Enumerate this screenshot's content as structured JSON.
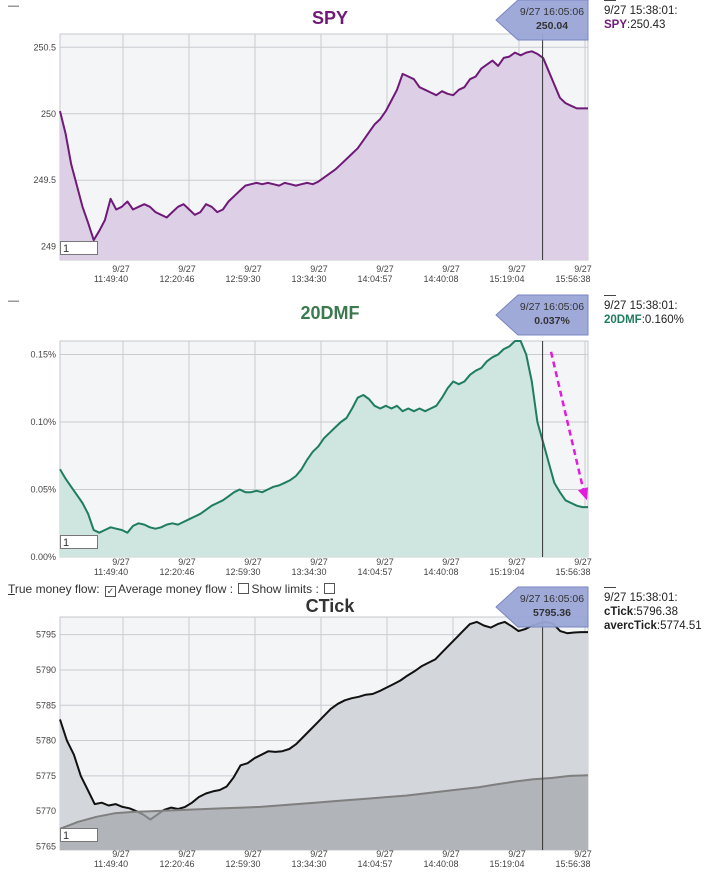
{
  "controls": {
    "true_mf_prefix": "T",
    "true_mf_rest": "rue money flow:",
    "avg_mf_label": "Average money flow :",
    "show_limits_label": "Show limits :"
  },
  "chart_data": [
    {
      "id": "spy",
      "type": "area",
      "title": "SPY",
      "dash": "—",
      "zoom": "1",
      "x_tick_date": "9/27",
      "x_ticks": [
        "11:49:40",
        "12:20:46",
        "12:59:30",
        "13:34:30",
        "14:04:57",
        "14:40:08",
        "15:19:04",
        "15:56:38"
      ],
      "y_ticks": [
        "249",
        "249.5",
        "250",
        "250.5"
      ],
      "y_tick_values": [
        249,
        249.5,
        250,
        250.5
      ],
      "ylim": [
        248.9,
        250.6
      ],
      "colors": {
        "line": "#701a78",
        "fill": "#ddd0e6"
      },
      "cursor": {
        "label": "9/27 16:05:06",
        "value": "250.04",
        "x_frac": 0.914
      },
      "info": {
        "time": "9/27 15:38:01:",
        "key": "SPY",
        "value": ":250.43"
      },
      "series": [
        {
          "values": [
            250.02,
            249.85,
            249.62,
            249.46,
            249.3,
            249.18,
            249.05,
            249.12,
            249.2,
            249.36,
            249.28,
            249.3,
            249.34,
            249.28,
            249.3,
            249.32,
            249.3,
            249.26,
            249.24,
            249.22,
            249.26,
            249.3,
            249.32,
            249.28,
            249.24,
            249.26,
            249.32,
            249.3,
            249.26,
            249.28,
            249.34,
            249.38,
            249.42,
            249.46,
            249.47,
            249.48,
            249.47,
            249.48,
            249.47,
            249.46,
            249.48,
            249.47,
            249.46,
            249.47,
            249.48,
            249.47,
            249.49,
            249.52,
            249.55,
            249.58,
            249.62,
            249.66,
            249.7,
            249.74,
            249.8,
            249.86,
            249.92,
            249.96,
            250.02,
            250.1,
            250.18,
            250.3,
            250.28,
            250.26,
            250.2,
            250.18,
            250.16,
            250.14,
            250.17,
            250.15,
            250.14,
            250.18,
            250.2,
            250.26,
            250.28,
            250.34,
            250.37,
            250.4,
            250.36,
            250.42,
            250.43,
            250.46,
            250.44,
            250.46,
            250.47,
            250.45,
            250.42,
            250.32,
            250.22,
            250.12,
            250.08,
            250.06,
            250.04,
            250.04,
            250.04
          ]
        }
      ]
    },
    {
      "id": "dmf",
      "type": "area",
      "title": "20DMF",
      "dash": "—",
      "zoom": "1",
      "x_tick_date": "9/27",
      "x_ticks": [
        "11:49:40",
        "12:20:46",
        "12:59:30",
        "13:34:30",
        "14:04:57",
        "14:40:08",
        "15:19:04",
        "15:56:38"
      ],
      "y_ticks": [
        "0.00%",
        "0.05%",
        "0.10%",
        "0.15%"
      ],
      "y_tick_values": [
        0,
        0.05,
        0.1,
        0.15
      ],
      "ylim": [
        0,
        0.16
      ],
      "colors": {
        "line": "#1f7d5e",
        "fill": "#cfe5df",
        "arrow": "#e21cdc"
      },
      "cursor": {
        "label": "9/27 16:05:06",
        "value": "0.037%",
        "x_frac": 0.914
      },
      "info": {
        "time": "9/27 15:38:01:",
        "key": "20DMF",
        "value": ":0.160%"
      },
      "series": [
        {
          "values": [
            0.065,
            0.058,
            0.052,
            0.046,
            0.04,
            0.032,
            0.02,
            0.018,
            0.02,
            0.022,
            0.021,
            0.02,
            0.018,
            0.023,
            0.025,
            0.024,
            0.022,
            0.021,
            0.022,
            0.024,
            0.025,
            0.024,
            0.026,
            0.028,
            0.03,
            0.032,
            0.035,
            0.038,
            0.04,
            0.042,
            0.045,
            0.048,
            0.05,
            0.048,
            0.048,
            0.049,
            0.048,
            0.05,
            0.052,
            0.053,
            0.055,
            0.057,
            0.06,
            0.065,
            0.072,
            0.078,
            0.082,
            0.088,
            0.092,
            0.096,
            0.1,
            0.103,
            0.11,
            0.118,
            0.12,
            0.117,
            0.112,
            0.11,
            0.112,
            0.11,
            0.112,
            0.108,
            0.11,
            0.108,
            0.11,
            0.108,
            0.11,
            0.112,
            0.118,
            0.125,
            0.13,
            0.128,
            0.13,
            0.135,
            0.138,
            0.14,
            0.145,
            0.148,
            0.15,
            0.154,
            0.156,
            0.16,
            0.16,
            0.15,
            0.13,
            0.1,
            0.085,
            0.07,
            0.055,
            0.048,
            0.042,
            0.04,
            0.038,
            0.037,
            0.037
          ]
        }
      ]
    },
    {
      "id": "ctick",
      "type": "area",
      "title": "CTick",
      "dash": "—",
      "zoom": "1",
      "x_tick_date": "9/27",
      "x_ticks": [
        "11:49:40",
        "12:20:46",
        "12:59:30",
        "13:34:30",
        "14:04:57",
        "14:40:08",
        "15:19:04",
        "15:56:38"
      ],
      "y_ticks": [
        "5765",
        "5770",
        "5775",
        "5780",
        "5785",
        "5790",
        "5795"
      ],
      "y_tick_values": [
        5765,
        5770,
        5775,
        5780,
        5785,
        5790,
        5795
      ],
      "ylim": [
        5764.5,
        5797.5
      ],
      "colors": {
        "line": "#111111",
        "fill": "#d3d6db",
        "avg_line": "#7f7f7f",
        "avg_fill": "#a6a9ae"
      },
      "cursor": {
        "label": "9/27 16:05:06",
        "value": "5795.36",
        "x_frac": 0.914
      },
      "info": {
        "time": "9/27 15:38:01:",
        "key": "cTick",
        "value": ":5796.38",
        "key2": "avercTick",
        "value2": ":5774.51"
      },
      "series": [
        {
          "name": "cTick",
          "values": [
            5783,
            5780,
            5778,
            5775,
            5773,
            5771,
            5771.2,
            5770.8,
            5771,
            5770.6,
            5770.4,
            5770,
            5769.5,
            5768.8,
            5769.5,
            5770.2,
            5770.5,
            5770.3,
            5770.6,
            5771.2,
            5772,
            5772.5,
            5772.8,
            5773,
            5773.5,
            5774.8,
            5776.5,
            5776.8,
            5777.5,
            5778,
            5778.5,
            5778.4,
            5778.5,
            5778.8,
            5779.5,
            5780.5,
            5781.5,
            5782.5,
            5783.5,
            5784.5,
            5785.2,
            5785.7,
            5786,
            5786.2,
            5786.5,
            5786.6,
            5787,
            5787.5,
            5788,
            5788.5,
            5789.2,
            5789.8,
            5790.5,
            5791,
            5791.5,
            5792.5,
            5793.5,
            5794.5,
            5795.5,
            5796.5,
            5796.8,
            5796.3,
            5796,
            5796.5,
            5796.8,
            5796.2,
            5795.5,
            5795.8,
            5796.3,
            5796.6,
            5796.8,
            5796.5,
            5795.5,
            5795.2,
            5795.3,
            5795.36,
            5795.36
          ]
        },
        {
          "name": "avercTick",
          "values": [
            5767.5,
            5768.5,
            5769.2,
            5769.7,
            5769.9,
            5770,
            5770.1,
            5770.2,
            5770.3,
            5770.4,
            5770.5,
            5770.6,
            5770.8,
            5771,
            5771.2,
            5771.4,
            5771.6,
            5771.8,
            5772,
            5772.2,
            5772.5,
            5772.8,
            5773.1,
            5773.4,
            5773.8,
            5774.2,
            5774.51,
            5774.7,
            5775,
            5775.1
          ]
        }
      ]
    }
  ]
}
